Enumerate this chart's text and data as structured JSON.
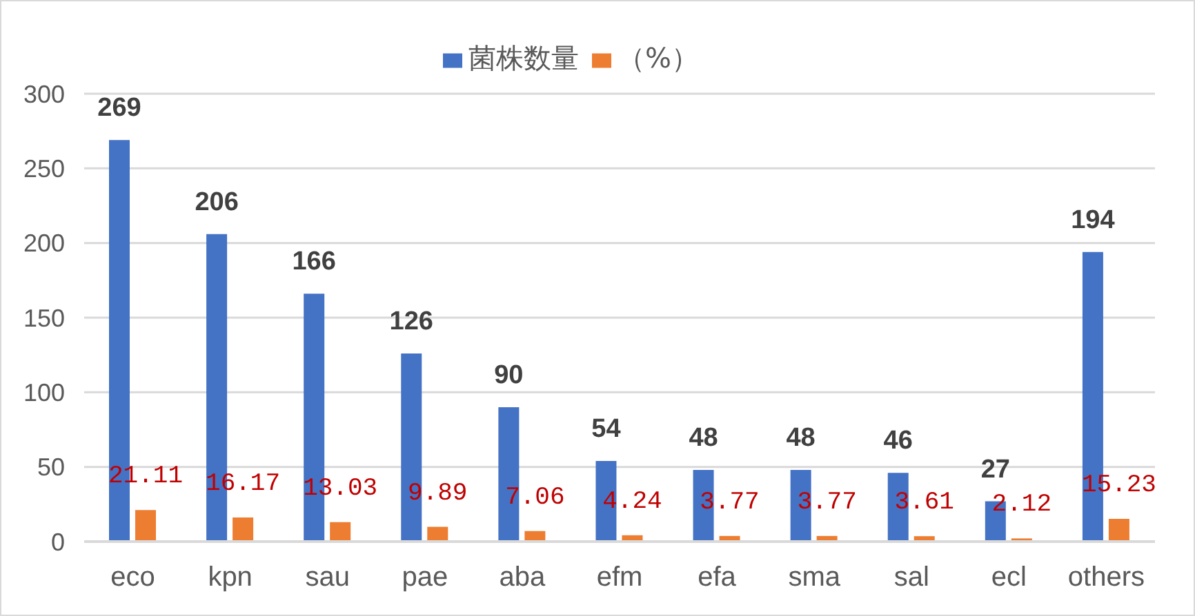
{
  "chart_data": {
    "type": "bar",
    "categories": [
      "eco",
      "kpn",
      "sau",
      "pae",
      "aba",
      "efm",
      "efa",
      "sma",
      "sal",
      "ecl",
      "others"
    ],
    "series": [
      {
        "name": "菌株数量",
        "color": "#4472c4",
        "values": [
          269,
          206,
          166,
          126,
          90,
          54,
          48,
          48,
          46,
          27,
          194
        ]
      },
      {
        "name": "（%）",
        "color": "#ed7d31",
        "values": [
          21.11,
          16.17,
          13.03,
          9.89,
          7.06,
          4.24,
          3.77,
          3.77,
          3.61,
          2.12,
          15.23
        ]
      }
    ],
    "ylim": [
      0,
      300
    ],
    "yticks": [
      0,
      50,
      100,
      150,
      200,
      250,
      300
    ],
    "grid": "y",
    "legend": "top",
    "data_labels": true
  }
}
